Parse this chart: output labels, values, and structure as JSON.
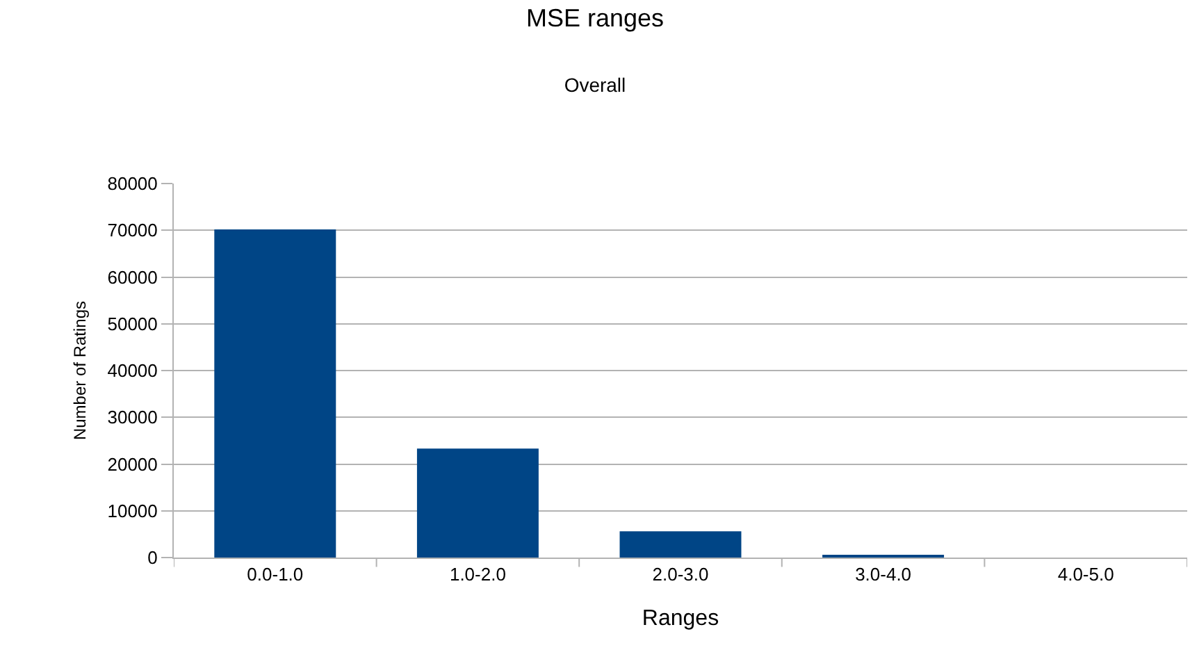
{
  "chart_data": {
    "type": "bar",
    "title": "MSE ranges",
    "subtitle": "Overall",
    "xlabel": "Ranges",
    "ylabel": "Number of Ratings",
    "categories": [
      "0.0-1.0",
      "1.0-2.0",
      "2.0-3.0",
      "3.0-4.0",
      "4.0-5.0"
    ],
    "values": [
      70200,
      23300,
      5600,
      500,
      0
    ],
    "color": "#004586",
    "ylim": [
      0,
      80000
    ],
    "yticks": [
      0,
      10000,
      20000,
      30000,
      40000,
      50000,
      60000,
      70000,
      80000
    ],
    "grid": "y",
    "legend": false
  }
}
